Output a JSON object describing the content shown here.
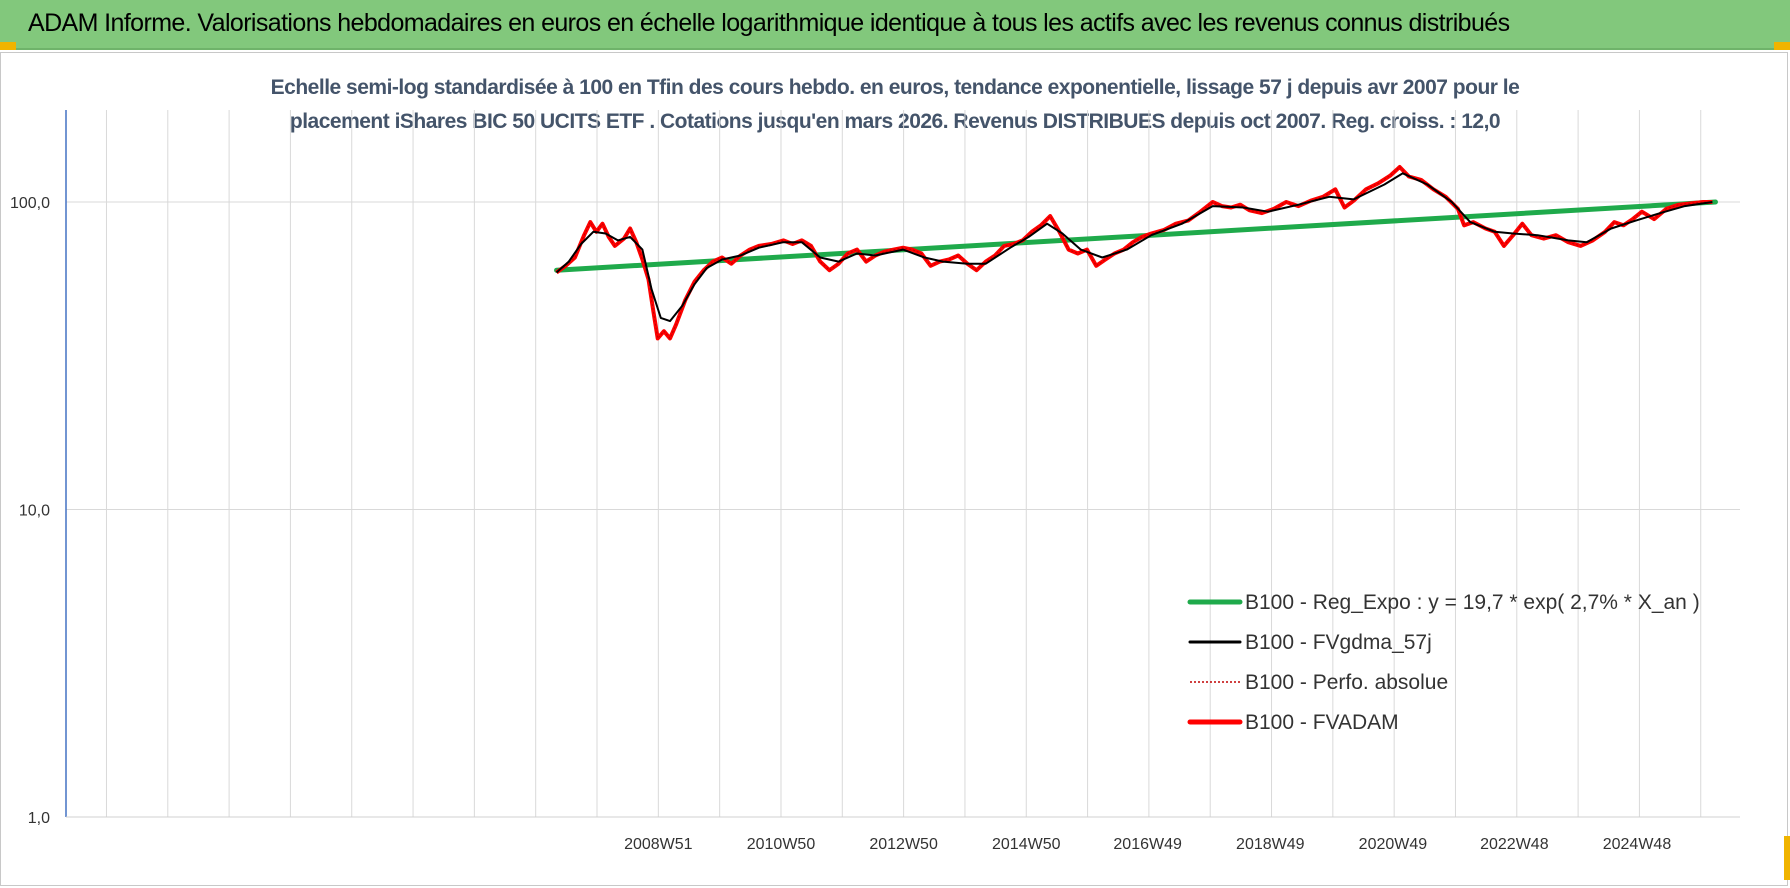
{
  "banner": {
    "title": "ADAM Informe. Valorisations hebdomadaires en euros en échelle logarithmique identique à tous les actifs avec les revenus connus distribués"
  },
  "colors": {
    "banner_bg": "#82c87c",
    "corner": "#f0b400",
    "subtitle": "#44546a",
    "reg": "#1faa4b",
    "gdma": "#000000",
    "perfo": "#c00000",
    "fvadam": "#ff0000",
    "grid": "#d9d9d9",
    "axis": "#4472c4"
  },
  "chart_data": {
    "type": "line",
    "title_lines": [
      "Echelle semi-log standardisée à 100 en Tfin des cours hebdo. en euros, tendance exponentielle, lissage 57 j depuis avr 2007 pour le",
      "placement iShares BIC 50 UCITS ETF . Cotations jusqu'en mars 2026. Revenus DISTRIBUES depuis oct 2007. Reg. croiss. : 12,0"
    ],
    "y_scale": "log",
    "ylim": [
      1,
      200
    ],
    "y_ticks": [
      "1,0",
      "10,0",
      "100,0"
    ],
    "y_tick_values": [
      1,
      10,
      100
    ],
    "x_ticks": [
      "2008W51",
      "2010W50",
      "2012W50",
      "2014W50",
      "2016W49",
      "2018W49",
      "2020W49",
      "2022W48",
      "2024W48"
    ],
    "x_tick_years": [
      2008.96,
      2010.96,
      2012.96,
      2014.96,
      2016.94,
      2018.94,
      2020.94,
      2022.92,
      2024.92
    ],
    "x_range_years": [
      1999.3,
      2026.6
    ],
    "grid": true,
    "legend_position": "bottom-right",
    "legend": [
      {
        "key": "reg",
        "label": "B100 - Reg_Expo : y = 19,7 * exp( 2,7% *  X_an )"
      },
      {
        "key": "gdma",
        "label": "B100 - FVgdma_57j"
      },
      {
        "key": "perfo",
        "label": "B100 - Perfo. absolue"
      },
      {
        "key": "fvadam",
        "label": "B100 - FVADAM"
      }
    ],
    "regression": {
      "start": [
        2007.3,
        60
      ],
      "end": [
        2026.2,
        100
      ]
    },
    "fvadam": [
      [
        2007.3,
        59
      ],
      [
        2007.45,
        62
      ],
      [
        2007.6,
        66
      ],
      [
        2007.75,
        78
      ],
      [
        2007.85,
        86
      ],
      [
        2007.95,
        80
      ],
      [
        2008.05,
        85
      ],
      [
        2008.15,
        77
      ],
      [
        2008.25,
        72
      ],
      [
        2008.4,
        76
      ],
      [
        2008.5,
        82
      ],
      [
        2008.6,
        74
      ],
      [
        2008.7,
        65
      ],
      [
        2008.8,
        56
      ],
      [
        2008.88,
        44
      ],
      [
        2008.95,
        36
      ],
      [
        2009.05,
        38
      ],
      [
        2009.15,
        36
      ],
      [
        2009.25,
        40
      ],
      [
        2009.4,
        48
      ],
      [
        2009.55,
        55
      ],
      [
        2009.7,
        60
      ],
      [
        2009.85,
        64
      ],
      [
        2010.0,
        66
      ],
      [
        2010.15,
        63
      ],
      [
        2010.3,
        67
      ],
      [
        2010.45,
        70
      ],
      [
        2010.6,
        72
      ],
      [
        2010.8,
        73
      ],
      [
        2011.0,
        75
      ],
      [
        2011.15,
        73
      ],
      [
        2011.3,
        75
      ],
      [
        2011.45,
        72
      ],
      [
        2011.6,
        64
      ],
      [
        2011.75,
        60
      ],
      [
        2011.9,
        63
      ],
      [
        2012.05,
        68
      ],
      [
        2012.2,
        70
      ],
      [
        2012.35,
        64
      ],
      [
        2012.5,
        67
      ],
      [
        2012.65,
        69
      ],
      [
        2012.8,
        70
      ],
      [
        2012.95,
        71
      ],
      [
        2013.1,
        70
      ],
      [
        2013.25,
        68
      ],
      [
        2013.4,
        62
      ],
      [
        2013.55,
        64
      ],
      [
        2013.7,
        65
      ],
      [
        2013.85,
        67
      ],
      [
        2014.0,
        63
      ],
      [
        2014.15,
        60
      ],
      [
        2014.3,
        64
      ],
      [
        2014.45,
        67
      ],
      [
        2014.6,
        72
      ],
      [
        2014.75,
        73
      ],
      [
        2014.9,
        75
      ],
      [
        2015.05,
        80
      ],
      [
        2015.2,
        84
      ],
      [
        2015.35,
        90
      ],
      [
        2015.5,
        80
      ],
      [
        2015.65,
        70
      ],
      [
        2015.8,
        68
      ],
      [
        2015.95,
        70
      ],
      [
        2016.1,
        62
      ],
      [
        2016.25,
        65
      ],
      [
        2016.4,
        68
      ],
      [
        2016.55,
        70
      ],
      [
        2016.7,
        74
      ],
      [
        2016.85,
        77
      ],
      [
        2017.0,
        79
      ],
      [
        2017.2,
        81
      ],
      [
        2017.4,
        85
      ],
      [
        2017.6,
        87
      ],
      [
        2017.8,
        93
      ],
      [
        2018.0,
        100
      ],
      [
        2018.15,
        97
      ],
      [
        2018.3,
        96
      ],
      [
        2018.45,
        98
      ],
      [
        2018.6,
        94
      ],
      [
        2018.8,
        92
      ],
      [
        2019.0,
        95
      ],
      [
        2019.2,
        100
      ],
      [
        2019.4,
        97
      ],
      [
        2019.6,
        101
      ],
      [
        2019.8,
        104
      ],
      [
        2020.0,
        110
      ],
      [
        2020.15,
        96
      ],
      [
        2020.3,
        101
      ],
      [
        2020.5,
        110
      ],
      [
        2020.7,
        115
      ],
      [
        2020.9,
        122
      ],
      [
        2021.05,
        130
      ],
      [
        2021.2,
        121
      ],
      [
        2021.4,
        118
      ],
      [
        2021.6,
        110
      ],
      [
        2021.8,
        104
      ],
      [
        2022.0,
        95
      ],
      [
        2022.1,
        84
      ],
      [
        2022.25,
        86
      ],
      [
        2022.45,
        82
      ],
      [
        2022.6,
        80
      ],
      [
        2022.75,
        72
      ],
      [
        2022.9,
        78
      ],
      [
        2023.05,
        85
      ],
      [
        2023.2,
        78
      ],
      [
        2023.4,
        76
      ],
      [
        2023.6,
        78
      ],
      [
        2023.8,
        74
      ],
      [
        2024.0,
        72
      ],
      [
        2024.2,
        75
      ],
      [
        2024.4,
        80
      ],
      [
        2024.55,
        86
      ],
      [
        2024.7,
        84
      ],
      [
        2024.85,
        88
      ],
      [
        2025.0,
        93
      ],
      [
        2025.2,
        88
      ],
      [
        2025.4,
        95
      ],
      [
        2025.6,
        98
      ],
      [
        2025.8,
        99
      ],
      [
        2026.0,
        100
      ],
      [
        2026.15,
        100
      ]
    ],
    "fvgdma": [
      [
        2007.3,
        59
      ],
      [
        2007.5,
        64
      ],
      [
        2007.7,
        73
      ],
      [
        2007.9,
        80
      ],
      [
        2008.1,
        79
      ],
      [
        2008.3,
        75
      ],
      [
        2008.5,
        77
      ],
      [
        2008.7,
        70
      ],
      [
        2008.85,
        52
      ],
      [
        2009.0,
        42
      ],
      [
        2009.15,
        41
      ],
      [
        2009.35,
        46
      ],
      [
        2009.55,
        54
      ],
      [
        2009.75,
        61
      ],
      [
        2010.0,
        65
      ],
      [
        2010.3,
        67
      ],
      [
        2010.6,
        71
      ],
      [
        2011.0,
        74
      ],
      [
        2011.3,
        74
      ],
      [
        2011.6,
        66
      ],
      [
        2011.9,
        64
      ],
      [
        2012.2,
        68
      ],
      [
        2012.5,
        67
      ],
      [
        2012.95,
        70
      ],
      [
        2013.3,
        66
      ],
      [
        2013.6,
        64
      ],
      [
        2014.0,
        63
      ],
      [
        2014.3,
        63
      ],
      [
        2014.7,
        71
      ],
      [
        2015.0,
        77
      ],
      [
        2015.3,
        85
      ],
      [
        2015.55,
        79
      ],
      [
        2015.85,
        70
      ],
      [
        2016.2,
        66
      ],
      [
        2016.6,
        70
      ],
      [
        2017.0,
        78
      ],
      [
        2017.5,
        85
      ],
      [
        2018.0,
        97
      ],
      [
        2018.5,
        96
      ],
      [
        2018.9,
        93
      ],
      [
        2019.4,
        98
      ],
      [
        2019.9,
        104
      ],
      [
        2020.3,
        102
      ],
      [
        2020.8,
        114
      ],
      [
        2021.1,
        124
      ],
      [
        2021.5,
        114
      ],
      [
        2021.9,
        100
      ],
      [
        2022.2,
        86
      ],
      [
        2022.6,
        80
      ],
      [
        2022.9,
        79
      ],
      [
        2023.3,
        78
      ],
      [
        2023.8,
        75
      ],
      [
        2024.1,
        74
      ],
      [
        2024.5,
        82
      ],
      [
        2024.9,
        87
      ],
      [
        2025.3,
        92
      ],
      [
        2025.7,
        97
      ],
      [
        2026.15,
        100
      ]
    ]
  }
}
